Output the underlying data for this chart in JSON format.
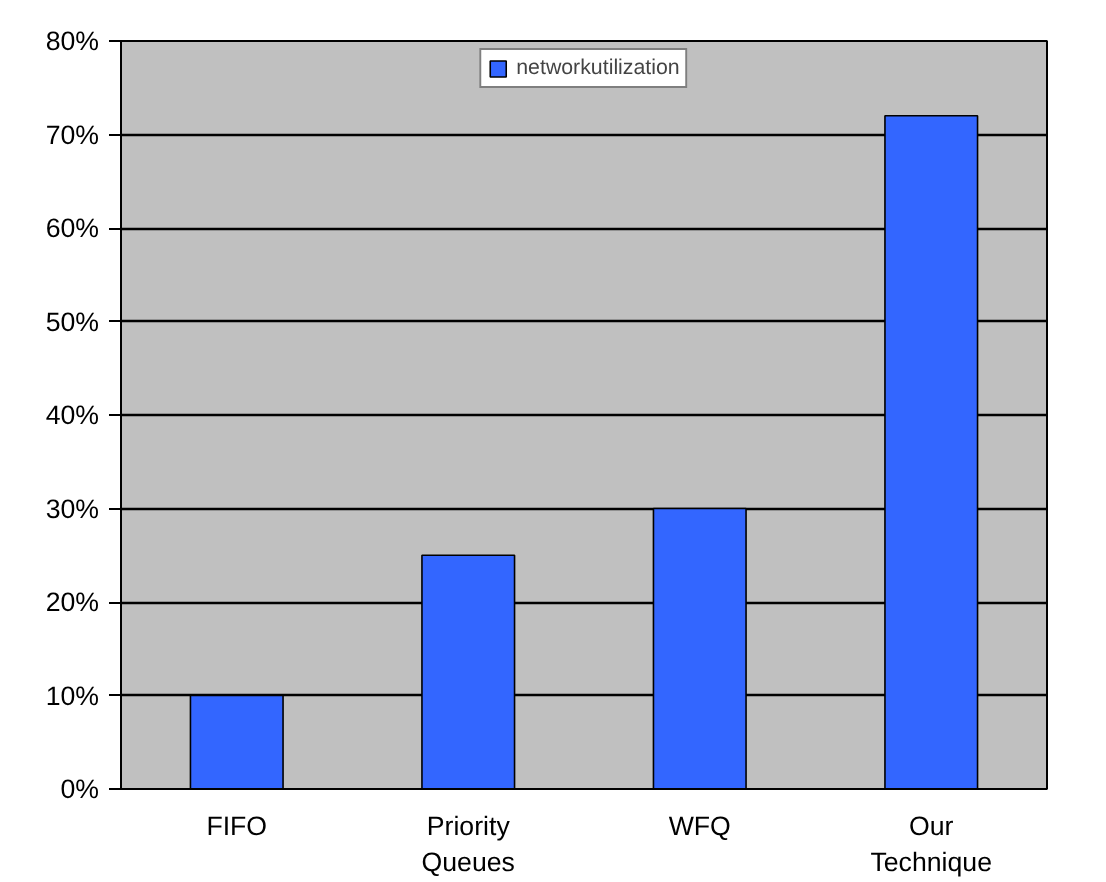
{
  "chart_data": {
    "type": "bar",
    "categories": [
      "FIFO",
      "Priority Queues",
      "WFQ",
      "Our Technique"
    ],
    "series": [
      {
        "name": "networkutilization",
        "color": "#3366ff",
        "values": [
          10,
          25,
          30,
          72
        ]
      }
    ],
    "ylim": [
      0,
      80
    ],
    "yticks": [
      {
        "value": 0,
        "label": "0%"
      },
      {
        "value": 10,
        "label": "10%"
      },
      {
        "value": 20,
        "label": "20%"
      },
      {
        "value": 30,
        "label": "30%"
      },
      {
        "value": 40,
        "label": "40%"
      },
      {
        "value": 50,
        "label": "50%"
      },
      {
        "value": 60,
        "label": "60%"
      },
      {
        "value": 70,
        "label": "70%"
      },
      {
        "value": 80,
        "label": "80%"
      }
    ],
    "grid": "y",
    "legend": "top"
  }
}
